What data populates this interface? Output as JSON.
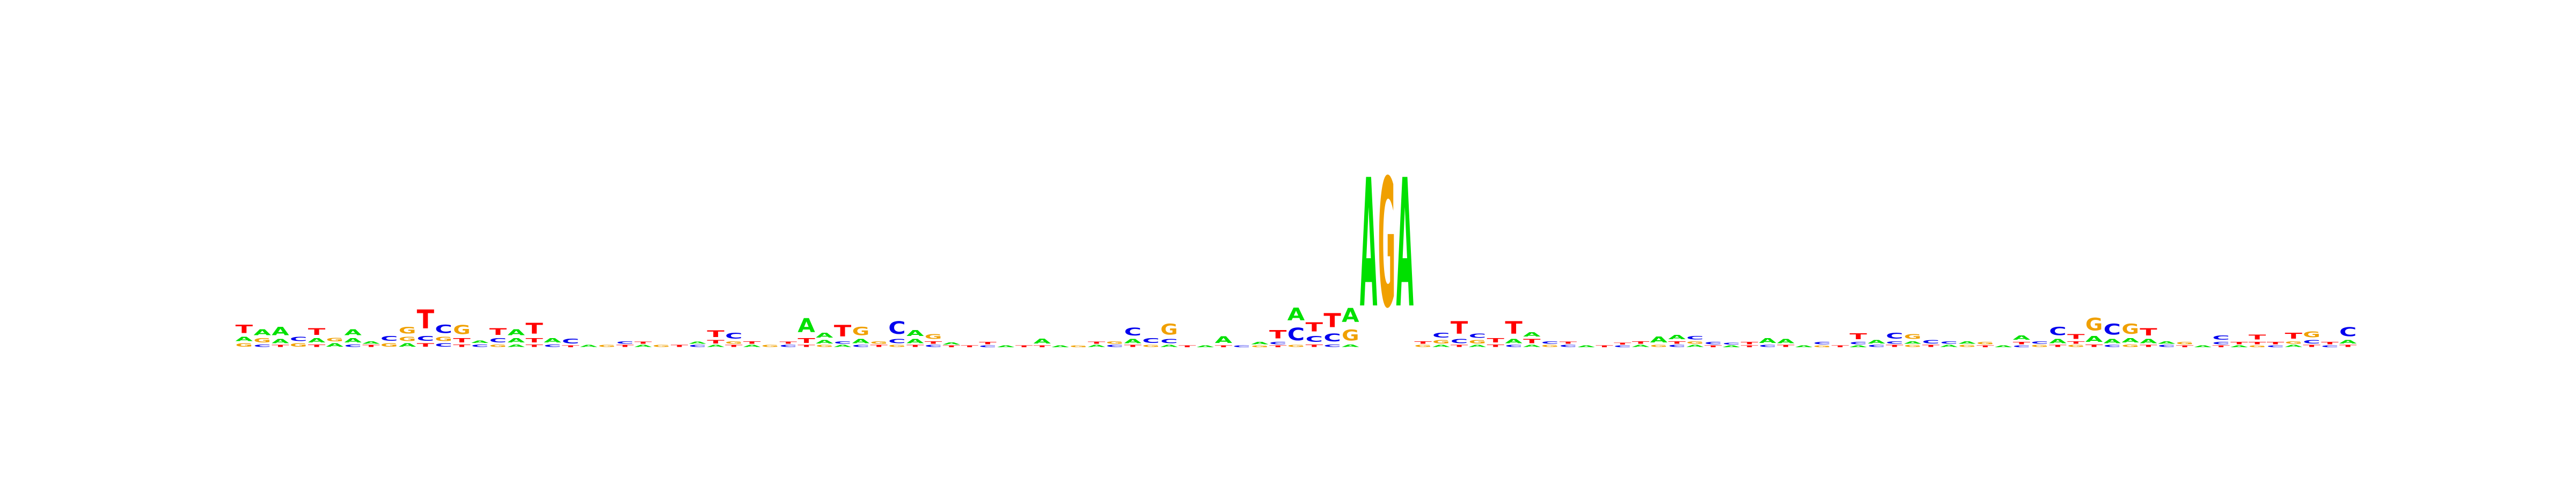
{
  "logo": {
    "colors": {
      "A": "#00e000",
      "C": "#0000ee",
      "G": "#f0a000",
      "T": "#ff0000"
    },
    "columns": [
      [
        [
          "G",
          0.08
        ],
        [
          "A",
          0.1
        ],
        [
          "T",
          0.2
        ]
      ],
      [
        [
          "C",
          0.06
        ],
        [
          "G",
          0.1
        ],
        [
          "A",
          0.14
        ]
      ],
      [
        [
          "T",
          0.05
        ],
        [
          "A",
          0.1
        ],
        [
          "A",
          0.2
        ]
      ],
      [
        [
          "G",
          0.08
        ],
        [
          "C",
          0.1
        ]
      ],
      [
        [
          "T",
          0.06
        ],
        [
          "A",
          0.1
        ],
        [
          "T",
          0.16
        ]
      ],
      [
        [
          "A",
          0.08
        ],
        [
          "G",
          0.08
        ]
      ],
      [
        [
          "C",
          0.06
        ],
        [
          "A",
          0.1
        ],
        [
          "A",
          0.14
        ]
      ],
      [
        [
          "T",
          0.05
        ],
        [
          "A",
          0.06
        ]
      ],
      [
        [
          "G",
          0.08
        ],
        [
          "C",
          0.12
        ]
      ],
      [
        [
          "A",
          0.08
        ],
        [
          "G",
          0.1
        ],
        [
          "G",
          0.16
        ]
      ],
      [
        [
          "T",
          0.08
        ],
        [
          "C",
          0.12
        ],
        [
          "T",
          0.45
        ]
      ],
      [
        [
          "C",
          0.08
        ],
        [
          "G",
          0.1
        ],
        [
          "C",
          0.2
        ]
      ],
      [
        [
          "T",
          0.06
        ],
        [
          "T",
          0.1
        ],
        [
          "G",
          0.22
        ]
      ],
      [
        [
          "C",
          0.06
        ],
        [
          "A",
          0.06
        ]
      ],
      [
        [
          "G",
          0.06
        ],
        [
          "C",
          0.1
        ],
        [
          "T",
          0.16
        ]
      ],
      [
        [
          "A",
          0.06
        ],
        [
          "A",
          0.1
        ],
        [
          "A",
          0.14
        ]
      ],
      [
        [
          "T",
          0.06
        ],
        [
          "T",
          0.1
        ],
        [
          "T",
          0.26
        ]
      ],
      [
        [
          "C",
          0.06
        ],
        [
          "A",
          0.1
        ]
      ],
      [
        [
          "T",
          0.04
        ],
        [
          "C",
          0.12
        ]
      ],
      [
        [
          "A",
          0.05
        ]
      ],
      [
        [
          "G",
          0.05
        ]
      ],
      [
        [
          "T",
          0.05
        ],
        [
          "C",
          0.06
        ]
      ],
      [
        [
          "A",
          0.05
        ],
        [
          "T",
          0.05
        ]
      ],
      [
        [
          "G",
          0.05
        ]
      ],
      [
        [
          "T",
          0.05
        ]
      ],
      [
        [
          "C",
          0.05
        ],
        [
          "A",
          0.05
        ]
      ],
      [
        [
          "A",
          0.05
        ],
        [
          "T",
          0.08
        ],
        [
          "T",
          0.16
        ]
      ],
      [
        [
          "T",
          0.05
        ],
        [
          "G",
          0.06
        ],
        [
          "C",
          0.14
        ]
      ],
      [
        [
          "A",
          0.05
        ],
        [
          "T",
          0.06
        ]
      ],
      [
        [
          "G",
          0.05
        ]
      ],
      [
        [
          "C",
          0.05
        ],
        [
          "T",
          0.05
        ]
      ],
      [
        [
          "T",
          0.05
        ],
        [
          "T",
          0.12
        ],
        [
          "A",
          0.34
        ]
      ],
      [
        [
          "G",
          0.05
        ],
        [
          "A",
          0.08
        ],
        [
          "A",
          0.12
        ]
      ],
      [
        [
          "A",
          0.05
        ],
        [
          "C",
          0.06
        ],
        [
          "T",
          0.28
        ]
      ],
      [
        [
          "C",
          0.05
        ],
        [
          "A",
          0.1
        ],
        [
          "G",
          0.2
        ]
      ],
      [
        [
          "T",
          0.05
        ],
        [
          "G",
          0.06
        ]
      ],
      [
        [
          "G",
          0.05
        ],
        [
          "C",
          0.1
        ],
        [
          "C",
          0.3
        ]
      ],
      [
        [
          "T",
          0.05
        ],
        [
          "A",
          0.1
        ],
        [
          "A",
          0.14
        ]
      ],
      [
        [
          "C",
          0.05
        ],
        [
          "T",
          0.06
        ],
        [
          "G",
          0.12
        ]
      ],
      [
        [
          "T",
          0.04
        ],
        [
          "A",
          0.05
        ]
      ],
      [
        [
          "T",
          0.04
        ]
      ],
      [
        [
          "C",
          0.04
        ],
        [
          "T",
          0.06
        ]
      ],
      [
        [
          "A",
          0.04
        ]
      ],
      [
        [
          "T",
          0.04
        ]
      ],
      [
        [
          "T",
          0.04
        ],
        [
          "A",
          0.12
        ]
      ],
      [
        [
          "A",
          0.04
        ]
      ],
      [
        [
          "G",
          0.04
        ]
      ],
      [
        [
          "A",
          0.05
        ],
        [
          "T",
          0.05
        ]
      ],
      [
        [
          "C",
          0.05
        ],
        [
          "G",
          0.06
        ]
      ],
      [
        [
          "T",
          0.05
        ],
        [
          "A",
          0.1
        ],
        [
          "C",
          0.18
        ]
      ],
      [
        [
          "G",
          0.05
        ],
        [
          "C",
          0.12
        ]
      ],
      [
        [
          "A",
          0.05
        ],
        [
          "C",
          0.1
        ],
        [
          "G",
          0.26
        ]
      ],
      [
        [
          "T",
          0.04
        ]
      ],
      [
        [
          "A",
          0.04
        ]
      ],
      [
        [
          "T",
          0.04
        ],
        [
          "A",
          0.16
        ]
      ],
      [
        [
          "C",
          0.04
        ]
      ],
      [
        [
          "G",
          0.04
        ],
        [
          "A",
          0.06
        ]
      ],
      [
        [
          "T",
          0.04
        ],
        [
          "C",
          0.06
        ],
        [
          "T",
          0.2
        ]
      ],
      [
        [
          "G",
          0.05
        ],
        [
          "C",
          0.3
        ],
        [
          "A",
          0.3
        ]
      ],
      [
        [
          "T",
          0.06
        ],
        [
          "C",
          0.14
        ],
        [
          "T",
          0.22
        ]
      ],
      [
        [
          "C",
          0.06
        ],
        [
          "C",
          0.18
        ],
        [
          "T",
          0.34
        ]
      ],
      [
        [
          "A",
          0.06
        ],
        [
          "G",
          0.26
        ],
        [
          "A",
          0.34
        ]
      ],
      [
        [
          "A",
          3.1
        ]
      ],
      [
        [
          "G",
          3.1
        ]
      ],
      [
        [
          "A",
          3.1
        ]
      ],
      [
        [
          "G",
          0.05
        ],
        [
          "T",
          0.06
        ]
      ],
      [
        [
          "A",
          0.05
        ],
        [
          "G",
          0.08
        ],
        [
          "C",
          0.12
        ]
      ],
      [
        [
          "T",
          0.05
        ],
        [
          "C",
          0.1
        ],
        [
          "T",
          0.3
        ]
      ],
      [
        [
          "A",
          0.05
        ],
        [
          "G",
          0.08
        ],
        [
          "C",
          0.1
        ]
      ],
      [
        [
          "T",
          0.06
        ],
        [
          "T",
          0.1
        ]
      ],
      [
        [
          "C",
          0.05
        ],
        [
          "A",
          0.1
        ],
        [
          "T",
          0.3
        ]
      ],
      [
        [
          "A",
          0.05
        ],
        [
          "T",
          0.1
        ],
        [
          "A",
          0.1
        ]
      ],
      [
        [
          "G",
          0.05
        ],
        [
          "C",
          0.06
        ]
      ],
      [
        [
          "C",
          0.05
        ],
        [
          "T",
          0.05
        ]
      ],
      [
        [
          "A",
          0.04
        ]
      ],
      [
        [
          "T",
          0.04
        ]
      ],
      [
        [
          "C",
          0.04
        ],
        [
          "T",
          0.04
        ]
      ],
      [
        [
          "A",
          0.05
        ],
        [
          "T",
          0.06
        ]
      ],
      [
        [
          "G",
          0.05
        ],
        [
          "A",
          0.14
        ]
      ],
      [
        [
          "C",
          0.05
        ],
        [
          "T",
          0.06
        ],
        [
          "A",
          0.1
        ]
      ],
      [
        [
          "A",
          0.05
        ],
        [
          "G",
          0.06
        ],
        [
          "C",
          0.08
        ]
      ],
      [
        [
          "T",
          0.04
        ],
        [
          "C",
          0.06
        ]
      ],
      [
        [
          "A",
          0.04
        ],
        [
          "C",
          0.04
        ]
      ],
      [
        [
          "T",
          0.04
        ],
        [
          "T",
          0.06
        ]
      ],
      [
        [
          "C",
          0.05
        ],
        [
          "A",
          0.12
        ]
      ],
      [
        [
          "T",
          0.05
        ],
        [
          "A",
          0.1
        ]
      ],
      [
        [
          "A",
          0.04
        ]
      ],
      [
        [
          "G",
          0.04
        ],
        [
          "C",
          0.06
        ]
      ],
      [
        [
          "T",
          0.04
        ]
      ],
      [
        [
          "A",
          0.04
        ],
        [
          "C",
          0.06
        ],
        [
          "T",
          0.14
        ]
      ],
      [
        [
          "C",
          0.05
        ],
        [
          "A",
          0.08
        ]
      ],
      [
        [
          "T",
          0.05
        ],
        [
          "C",
          0.06
        ],
        [
          "C",
          0.14
        ]
      ],
      [
        [
          "G",
          0.05
        ],
        [
          "A",
          0.06
        ],
        [
          "G",
          0.12
        ]
      ],
      [
        [
          "T",
          0.05
        ],
        [
          "C",
          0.08
        ]
      ],
      [
        [
          "A",
          0.05
        ],
        [
          "C",
          0.06
        ]
      ],
      [
        [
          "G",
          0.05
        ],
        [
          "A",
          0.06
        ]
      ],
      [
        [
          "T",
          0.04
        ],
        [
          "G",
          0.06
        ]
      ],
      [
        [
          "A",
          0.04
        ]
      ],
      [
        [
          "C",
          0.04
        ],
        [
          "T",
          0.06
        ],
        [
          "A",
          0.1
        ]
      ],
      [
        [
          "G",
          0.05
        ],
        [
          "C",
          0.06
        ]
      ],
      [
        [
          "T",
          0.05
        ],
        [
          "A",
          0.1
        ],
        [
          "C",
          0.2
        ]
      ],
      [
        [
          "G",
          0.05
        ],
        [
          "T",
          0.06
        ],
        [
          "T",
          0.12
        ]
      ],
      [
        [
          "T",
          0.06
        ],
        [
          "A",
          0.14
        ],
        [
          "G",
          0.3
        ]
      ],
      [
        [
          "C",
          0.05
        ],
        [
          "A",
          0.1
        ],
        [
          "C",
          0.26
        ]
      ],
      [
        [
          "G",
          0.06
        ],
        [
          "A",
          0.1
        ],
        [
          "G",
          0.24
        ]
      ],
      [
        [
          "T",
          0.05
        ],
        [
          "A",
          0.1
        ],
        [
          "T",
          0.18
        ]
      ],
      [
        [
          "C",
          0.05
        ],
        [
          "A",
          0.06
        ]
      ],
      [
        [
          "T",
          0.04
        ],
        [
          "G",
          0.06
        ]
      ],
      [
        [
          "A",
          0.04
        ]
      ],
      [
        [
          "T",
          0.04
        ],
        [
          "C",
          0.06
        ],
        [
          "C",
          0.1
        ]
      ],
      [
        [
          "A",
          0.04
        ],
        [
          "T",
          0.06
        ]
      ],
      [
        [
          "G",
          0.04
        ],
        [
          "T",
          0.06
        ],
        [
          "T",
          0.12
        ]
      ],
      [
        [
          "C",
          0.04
        ],
        [
          "T",
          0.06
        ]
      ],
      [
        [
          "A",
          0.05
        ],
        [
          "G",
          0.06
        ],
        [
          "T",
          0.14
        ]
      ],
      [
        [
          "T",
          0.05
        ],
        [
          "C",
          0.08
        ],
        [
          "G",
          0.14
        ]
      ],
      [
        [
          "C",
          0.04
        ],
        [
          "T",
          0.06
        ]
      ],
      [
        [
          "T",
          0.05
        ],
        [
          "A",
          0.08
        ],
        [
          "C",
          0.22
        ]
      ]
    ]
  }
}
